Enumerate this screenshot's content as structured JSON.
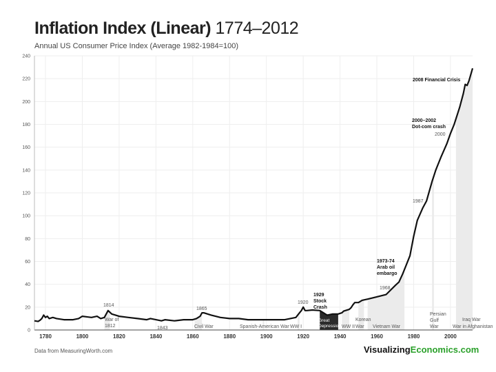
{
  "header": {
    "title_bold": "Inflation Index (Linear)",
    "title_years": "1774–2012",
    "subtitle": "Annual US Consumer Price Index (Average 1982-1984=100)"
  },
  "footer": {
    "source": "Data from MeasuringWorth.com",
    "brand_prefix": "Visualizing",
    "brand_suffix": "Economics.com"
  },
  "colors": {
    "line": "#111111",
    "shade": "#ebebeb",
    "dark_shade": "#2b2b2b",
    "grid": "#eeeeee",
    "brand_accent": "#2aa02a"
  },
  "chart_data": {
    "type": "line",
    "title": "Inflation Index (Linear) 1774–2012",
    "subtitle": "Annual US Consumer Price Index (Average 1982-1984=100)",
    "xlim": [
      1774,
      2012
    ],
    "ylim": [
      0,
      240
    ],
    "y_ticks": [
      0,
      20,
      40,
      60,
      80,
      100,
      120,
      140,
      160,
      180,
      200,
      220,
      240
    ],
    "x_ticks": [
      1780,
      1800,
      1820,
      1840,
      1860,
      1880,
      1900,
      1920,
      1940,
      1960,
      1980,
      2000
    ],
    "grid": true,
    "series": [
      {
        "x": [
          1774,
          1776,
          1777,
          1778,
          1779,
          1780,
          1781,
          1782,
          1784,
          1786,
          1790,
          1795,
          1798,
          1800,
          1805,
          1808,
          1810,
          1812,
          1814,
          1816,
          1818,
          1820,
          1825,
          1830,
          1835,
          1837,
          1840,
          1843,
          1845,
          1850,
          1855,
          1860,
          1862,
          1864,
          1865,
          1866,
          1870,
          1875,
          1880,
          1885,
          1890,
          1896,
          1900,
          1905,
          1910,
          1913,
          1916,
          1917,
          1918,
          1919,
          1920,
          1921,
          1922,
          1925,
          1929,
          1931,
          1932,
          1933,
          1936,
          1939,
          1941,
          1942,
          1945,
          1946,
          1947,
          1948,
          1950,
          1952,
          1955,
          1960,
          1965,
          1970,
          1972,
          1974,
          1976,
          1978,
          1980,
          1982,
          1985,
          1987,
          1990,
          1992,
          1995,
          1998,
          2000,
          2002,
          2005,
          2007,
          2008,
          2009,
          2010,
          2012
        ],
        "y": [
          8,
          7.5,
          8.5,
          10,
          13,
          11,
          12,
          10,
          11,
          10,
          9,
          9,
          10,
          12,
          11,
          12,
          10,
          11,
          17,
          14,
          13,
          12,
          11,
          10,
          9,
          10,
          9,
          8,
          9,
          8,
          9,
          9,
          10,
          12,
          15,
          15,
          13,
          11,
          10,
          10,
          9,
          9,
          9,
          9,
          9,
          10,
          11,
          13,
          15,
          17,
          20,
          17,
          17,
          17.5,
          17,
          15,
          14,
          13,
          14,
          14,
          15,
          16.5,
          18,
          19.5,
          22,
          24,
          24,
          26,
          27,
          29,
          31,
          39,
          42,
          49,
          57,
          65,
          82,
          96,
          107,
          113,
          130,
          140,
          152,
          163,
          172,
          180,
          195,
          207,
          215,
          214,
          218,
          229
        ]
      }
    ],
    "annotations": [
      {
        "text": "1814",
        "x": 1814,
        "y": 17
      },
      {
        "text": "War of",
        "x": 1812
      },
      {
        "text": "1812",
        "x": 1812
      },
      {
        "text": "1843",
        "x": 1843
      },
      {
        "text": "1865",
        "x": 1865,
        "y": 15
      },
      {
        "text": "Civil War",
        "x": 1865
      },
      {
        "text": "Spanish-American War",
        "x": 1898
      },
      {
        "text": "WW I",
        "x": 1917
      },
      {
        "text": "1920",
        "x": 1920,
        "y": 20
      },
      {
        "text": "1929",
        "x": 1929
      },
      {
        "text": "Stock",
        "x": 1929
      },
      {
        "text": "Crash",
        "x": 1929
      },
      {
        "text": "Great",
        "x": 1930
      },
      {
        "text": "Depression",
        "x": 1930
      },
      {
        "text": "WW II",
        "x": 1942
      },
      {
        "text": "Korean",
        "x": 1950
      },
      {
        "text": "War",
        "x": 1950
      },
      {
        "text": "Vietnam War",
        "x": 1965
      },
      {
        "text": "1968",
        "x": 1968,
        "y": 35
      },
      {
        "text": "1973-74",
        "x": 1973
      },
      {
        "text": "Arab oil",
        "x": 1973
      },
      {
        "text": "embargo",
        "x": 1973
      },
      {
        "text": "1987",
        "x": 1987,
        "y": 113
      },
      {
        "text": "Persian",
        "x": 1990
      },
      {
        "text": "Gulf",
        "x": 1990
      },
      {
        "text": "War",
        "x": 1990
      },
      {
        "text": "2000",
        "x": 2000,
        "y": 172
      },
      {
        "text": "2000–2002",
        "x": 2000
      },
      {
        "text": "Dot-com crash",
        "x": 2000
      },
      {
        "text": "2008 Financial Crisis",
        "x": 2008
      },
      {
        "text": "Iraq War",
        "x": 2003
      },
      {
        "text": "War in Afghanistan",
        "x": 2001
      }
    ],
    "shaded_periods": [
      {
        "label": "War of 1812",
        "start": 1812,
        "end": 1815
      },
      {
        "label": "Civil War",
        "start": 1861,
        "end": 1865
      },
      {
        "label": "Spanish-American War",
        "start": 1898,
        "end": 1898
      },
      {
        "label": "WW I",
        "start": 1917,
        "end": 1918
      },
      {
        "label": "Great Depression",
        "start": 1929,
        "end": 1939,
        "dark": true
      },
      {
        "label": "WW II",
        "start": 1941,
        "end": 1945
      },
      {
        "label": "Korean War",
        "start": 1950,
        "end": 1953
      },
      {
        "label": "Vietnam War",
        "start": 1955,
        "end": 1975
      },
      {
        "label": "Persian Gulf War",
        "start": 1990,
        "end": 1991
      },
      {
        "label": "Iraq War / War in Afghanistan",
        "start": 2003,
        "end": 2012
      }
    ]
  }
}
